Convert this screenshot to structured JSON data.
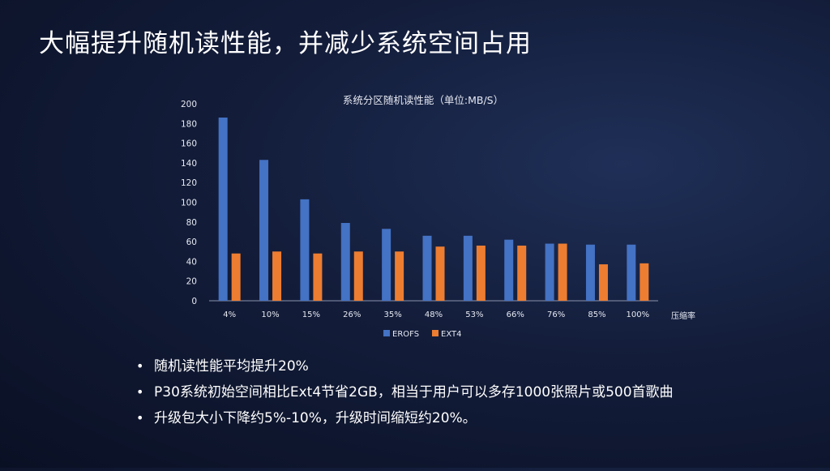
{
  "slide": {
    "title": "大幅提升随机读性能，并减少系统空间占用"
  },
  "chart_data": {
    "type": "bar",
    "title": "系统分区随机读性能（单位:MB/S）",
    "xlabel": "压缩率",
    "ylabel": "",
    "categories": [
      "4%",
      "10%",
      "15%",
      "26%",
      "35%",
      "48%",
      "53%",
      "66%",
      "76%",
      "85%",
      "100%"
    ],
    "series": [
      {
        "name": "EROFS",
        "color": "#4472c4",
        "values": [
          186,
          143,
          103,
          79,
          73,
          66,
          66,
          62,
          58,
          57,
          57
        ]
      },
      {
        "name": "EXT4",
        "color": "#ed7d31",
        "values": [
          48,
          50,
          48,
          50,
          50,
          55,
          56,
          56,
          58,
          37,
          38
        ]
      }
    ],
    "ylim": [
      0,
      200
    ],
    "yticks": [
      0,
      20,
      40,
      60,
      80,
      100,
      120,
      140,
      160,
      180,
      200
    ],
    "grid": false,
    "legend_position": "bottom"
  },
  "bullets": [
    "随机读性能平均提升20%",
    "P30系统初始空间相比Ext4节省2GB，相当于用户可以多存1000张照片或500首歌曲",
    "升级包大小下降约5%-10%，升级时间缩短约20%。"
  ]
}
